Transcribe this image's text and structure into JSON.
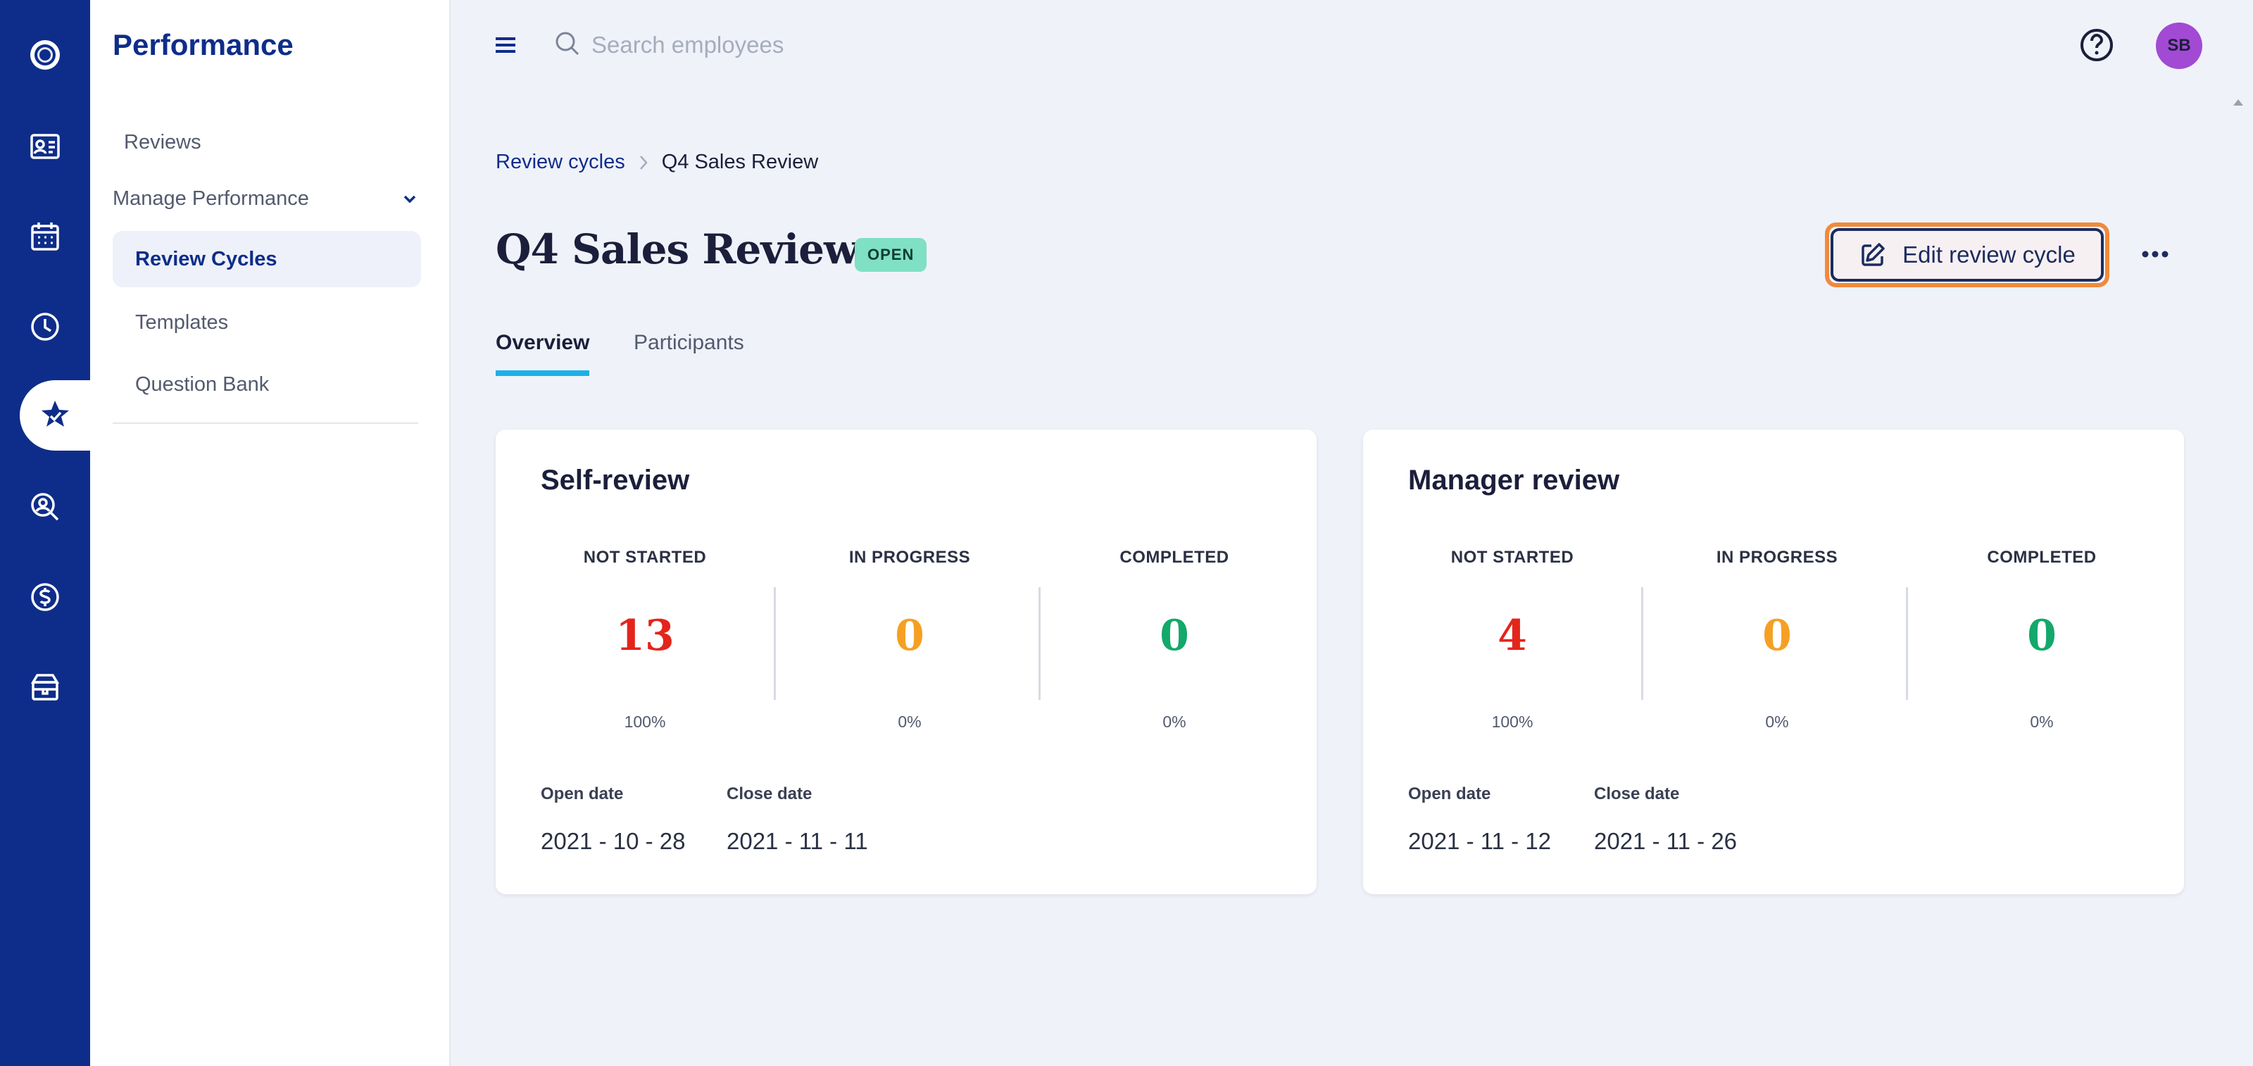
{
  "colors": {
    "rail": "#0e2d8a",
    "not_started": "#e3251c",
    "in_progress": "#f5a023",
    "completed": "#14a86b",
    "badge": "#7fe0c3",
    "tab_underline": "#1bb0e8",
    "focus_outline": "#f08a3c",
    "avatar": "#a24ad4"
  },
  "rail": {
    "icons": [
      "logo-icon",
      "id-card-icon",
      "calendar-icon",
      "clock-icon",
      "star-badge-icon",
      "search-person-icon",
      "dollar-icon",
      "package-icon"
    ],
    "active": "star-badge-icon"
  },
  "sidemenu": {
    "title": "Performance",
    "reviews": "Reviews",
    "group_label": "Manage Performance",
    "items": [
      {
        "label": "Review Cycles"
      },
      {
        "label": "Templates"
      },
      {
        "label": "Question Bank"
      }
    ]
  },
  "topbar": {
    "search_placeholder": "Search employees",
    "avatar_initials": "SB"
  },
  "header": {
    "breadcrumb_parent": "Review cycles",
    "breadcrumb_current": "Q4 Sales Review",
    "title": "Q4 Sales Review",
    "status": "OPEN",
    "edit_label": "Edit review cycle"
  },
  "tabs": [
    {
      "label": "Overview"
    },
    {
      "label": "Participants"
    }
  ],
  "cards": [
    {
      "title": "Self-review",
      "stats": [
        {
          "label": "NOT STARTED",
          "value": "13",
          "pct": "100%"
        },
        {
          "label": "IN PROGRESS",
          "value": "0",
          "pct": "0%"
        },
        {
          "label": "COMPLETED",
          "value": "0",
          "pct": "0%"
        }
      ],
      "open_label": "Open date",
      "open_date": "2021 - 10 - 28",
      "close_label": "Close date",
      "close_date": "2021 - 11 - 11"
    },
    {
      "title": "Manager review",
      "stats": [
        {
          "label": "NOT STARTED",
          "value": "4",
          "pct": "100%"
        },
        {
          "label": "IN PROGRESS",
          "value": "0",
          "pct": "0%"
        },
        {
          "label": "COMPLETED",
          "value": "0",
          "pct": "0%"
        }
      ],
      "open_label": "Open date",
      "open_date": "2021 - 11 - 12",
      "close_label": "Close date",
      "close_date": "2021 - 11 - 26"
    }
  ]
}
